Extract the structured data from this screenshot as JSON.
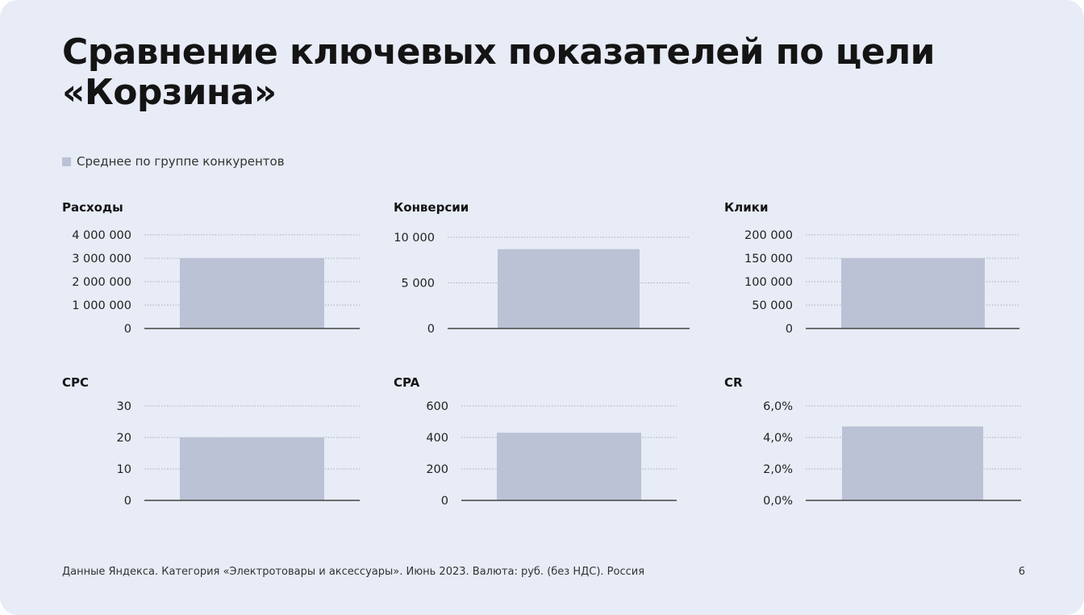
{
  "slide": {
    "title_line1": "Сравнение ключевых показателей по цели",
    "title_line2": "«Корзина»",
    "footer": "Данные Яндекса. Категория «Электротовары и аксессуары». Июнь 2023. Валюта: руб. (без НДС). Россия",
    "page_number": "6"
  },
  "legend": {
    "label": "Среднее по группе конкурентов",
    "color": "#bcc2d5"
  },
  "colors": {
    "bar": "#bcc2d5",
    "axis": "#444444",
    "grid": "#a8adb8",
    "text": "#141414"
  },
  "chart_data": [
    {
      "type": "bar",
      "title": "Расходы",
      "series": [
        {
          "name": "Среднее по группе конкурентов",
          "values": [
            3000000
          ]
        }
      ],
      "ylim": [
        0,
        4000000
      ],
      "yticks": [
        0,
        1000000,
        2000000,
        3000000,
        4000000
      ],
      "ytick_labels": [
        "0",
        "1 000 000",
        "2 000 000",
        "3 000 000",
        "4 000 000"
      ],
      "grid": true
    },
    {
      "type": "bar",
      "title": "Конверсии",
      "series": [
        {
          "name": "Среднее по группе конкурентов",
          "values": [
            8700
          ]
        }
      ],
      "ylim": [
        0,
        10000
      ],
      "yticks": [
        0,
        5000,
        10000
      ],
      "ytick_labels": [
        "0",
        "5 000",
        "10 000"
      ],
      "grid": true
    },
    {
      "type": "bar",
      "title": "Клики",
      "series": [
        {
          "name": "Среднее по группе конкурентов",
          "values": [
            150000
          ]
        }
      ],
      "ylim": [
        0,
        200000
      ],
      "yticks": [
        0,
        50000,
        100000,
        150000,
        200000
      ],
      "ytick_labels": [
        "0",
        "50 000",
        "100 000",
        "150 000",
        "200 000"
      ],
      "grid": true
    },
    {
      "type": "bar",
      "title": "CPC",
      "series": [
        {
          "name": "Среднее по группе конкурентов",
          "values": [
            20
          ]
        }
      ],
      "ylim": [
        0,
        30
      ],
      "yticks": [
        0,
        10,
        20,
        30
      ],
      "ytick_labels": [
        "0",
        "10",
        "20",
        "30"
      ],
      "grid": true
    },
    {
      "type": "bar",
      "title": "CPA",
      "series": [
        {
          "name": "Среднее по группе конкурентов",
          "values": [
            430
          ]
        }
      ],
      "ylim": [
        0,
        600
      ],
      "yticks": [
        0,
        200,
        400,
        600
      ],
      "ytick_labels": [
        "0",
        "200",
        "400",
        "600"
      ],
      "grid": true
    },
    {
      "type": "bar",
      "title": "CR",
      "series": [
        {
          "name": "Среднее по группе конкурентов",
          "values": [
            4.7
          ]
        }
      ],
      "ylim": [
        0,
        6
      ],
      "yticks": [
        0,
        2,
        4,
        6
      ],
      "ytick_labels": [
        "0,0%",
        "2,0%",
        "4,0%",
        "6,0%"
      ],
      "grid": true
    }
  ]
}
